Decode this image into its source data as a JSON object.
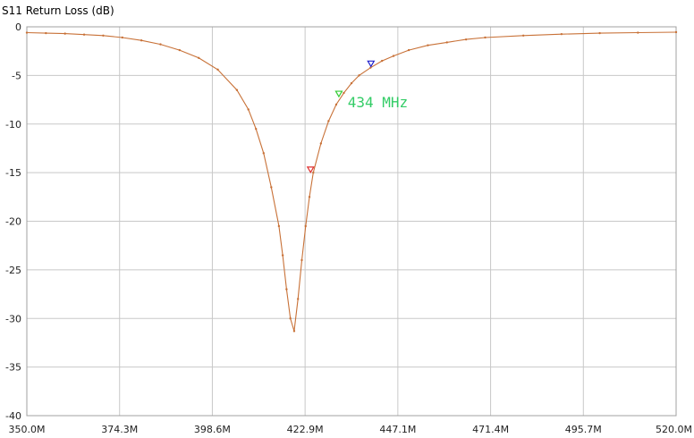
{
  "chart_data": {
    "type": "line",
    "title": "S11 Return Loss (dB)",
    "xlabel": "",
    "ylabel": "",
    "xlim": [
      350.0,
      520.0
    ],
    "ylim": [
      -40,
      0
    ],
    "x_tick_labels": [
      "350.0M",
      "374.3M",
      "398.6M",
      "422.9M",
      "447.1M",
      "471.4M",
      "495.7M",
      "520.0M"
    ],
    "y_ticks": [
      0,
      -5,
      -10,
      -15,
      -20,
      -25,
      -30,
      -35,
      -40
    ],
    "y_tick_labels": [
      "0",
      "-5",
      "-10",
      "-15",
      "-20",
      "-25",
      "-30",
      "-35",
      "-40"
    ],
    "grid": true,
    "colors": {
      "trace": "#c87137",
      "marker_red": "#e03030",
      "marker_green": "#33cc33",
      "marker_blue": "#2020cc",
      "annotation": "#33cc66"
    },
    "series": [
      {
        "x": [
          350.0,
          355,
          360,
          365,
          370,
          375,
          380,
          385,
          390,
          395,
          400,
          405,
          408,
          410,
          412,
          414,
          416,
          417,
          418,
          419,
          420,
          421,
          422,
          423,
          424,
          425,
          427,
          429,
          431,
          433,
          435,
          437,
          440,
          443,
          446,
          450,
          455,
          460,
          465,
          470,
          480,
          490,
          500,
          510,
          520
        ],
        "y": [
          -0.6,
          -0.65,
          -0.7,
          -0.8,
          -0.9,
          -1.1,
          -1.4,
          -1.8,
          -2.4,
          -3.2,
          -4.4,
          -6.5,
          -8.5,
          -10.5,
          -13.0,
          -16.5,
          -20.5,
          -23.5,
          -27.0,
          -30.0,
          -31.3,
          -28.0,
          -24.0,
          -20.5,
          -17.5,
          -15.0,
          -12.0,
          -9.7,
          -8.0,
          -6.8,
          -5.8,
          -5.0,
          -4.2,
          -3.5,
          -3.0,
          -2.4,
          -1.9,
          -1.6,
          -1.3,
          -1.1,
          -0.9,
          -0.75,
          -0.65,
          -0.6,
          -0.55
        ]
      }
    ],
    "markers": [
      {
        "x": 424.3,
        "y": -14.7,
        "color": "red"
      },
      {
        "x": 431.7,
        "y": -6.9,
        "color": "green"
      },
      {
        "x": 440.1,
        "y": -3.8,
        "color": "blue"
      }
    ],
    "annotations": [
      {
        "text": "434 MHz",
        "x": 434.0,
        "y": -7.8
      }
    ]
  }
}
